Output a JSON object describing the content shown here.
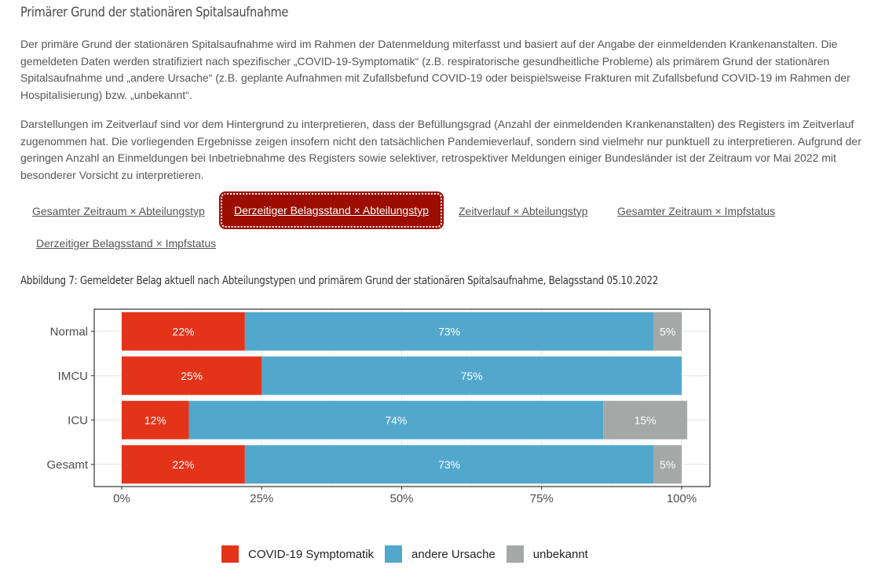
{
  "section": {
    "title": "Primärer Grund der stationären Spitalsaufnahme",
    "paragraph1": "Der primäre Grund der stationären Spitalsaufnahme wird im Rahmen der Datenmeldung miterfasst und basiert auf der Angabe der einmeldenden Krankenanstalten. Die gemeldeten Daten werden stratifiziert nach spezifischer „COVID-19-Symptomatik“ (z.B. respiratorische gesundheitliche Probleme) als primärem Grund der stationären Spitalsaufnahme und „andere Ursache“ (z.B. geplante Aufnahmen mit Zufallsbefund COVID-19 oder beispielsweise Frakturen mit Zufallsbefund COVID-19 im Rahmen der Hospitalisierung) bzw. „unbekannt“.",
    "paragraph2": "Darstellungen im Zeitverlauf sind vor dem Hintergrund zu interpretieren, dass der Befüllungsgrad (Anzahl der einmeldenden Krankenanstalten) des Registers im Zeitverlauf zugenommen hat. Die vorliegenden Ergebnisse zeigen insofern nicht den tatsächlichen Pandemieverlauf, sondern sind vielmehr nur punktuell zu interpretieren. Aufgrund der geringen Anzahl an Einmeldungen bei Inbetriebnahme des Registers sowie selektiver, retrospektiver Meldungen einiger Bundesländer ist der Zeitraum vor Mai 2022 mit besonderer Vorsicht zu interpretieren."
  },
  "tabs": [
    {
      "label": "Gesamter Zeitraum × Abteilungstyp",
      "active": false
    },
    {
      "label": "Derzeitiger Belagsstand × Abteilungstyp",
      "active": true
    },
    {
      "label": "Zeitverlauf × Abteilungstyp",
      "active": false
    },
    {
      "label": "Gesamter Zeitraum × Impfstatus",
      "active": false
    },
    {
      "label": "Derzeitiger Belagsstand × Impfstatus",
      "active": false
    }
  ],
  "figure_title": "Abbildung 7: Gemeldeter Belag aktuell nach Abteilungstypen und primärem Grund der stationären Spitalsaufnahme, Belagsstand 05.10.2022",
  "colors": {
    "covid": "#e3341a",
    "andere": "#52a8cc",
    "unbekannt": "#a4a8a6",
    "accent": "#9b0d00"
  },
  "chart_data": {
    "type": "bar",
    "orientation": "horizontal",
    "stacked": true,
    "categories": [
      "Normal",
      "IMCU",
      "ICU",
      "Gesamt"
    ],
    "series": [
      {
        "name": "COVID-19 Symptomatik",
        "color": "#e3341a",
        "values": [
          22,
          25,
          12,
          22
        ],
        "labels": [
          "22%",
          "25%",
          "12%",
          "22%"
        ]
      },
      {
        "name": "andere Ursache",
        "color": "#52a8cc",
        "values": [
          73,
          75,
          74,
          73
        ],
        "labels": [
          "73%",
          "75%",
          "74%",
          "73%"
        ]
      },
      {
        "name": "unbekannt",
        "color": "#a4a8a6",
        "values": [
          5,
          0,
          15,
          5
        ],
        "labels": [
          "5%",
          "",
          "15%",
          "5%"
        ]
      }
    ],
    "x_ticks": [
      0,
      25,
      50,
      75,
      100
    ],
    "x_tick_labels": [
      "0%",
      "25%",
      "50%",
      "75%",
      "100%"
    ],
    "xlim": [
      0,
      100
    ],
    "grid": true,
    "legend_position": "bottom"
  }
}
